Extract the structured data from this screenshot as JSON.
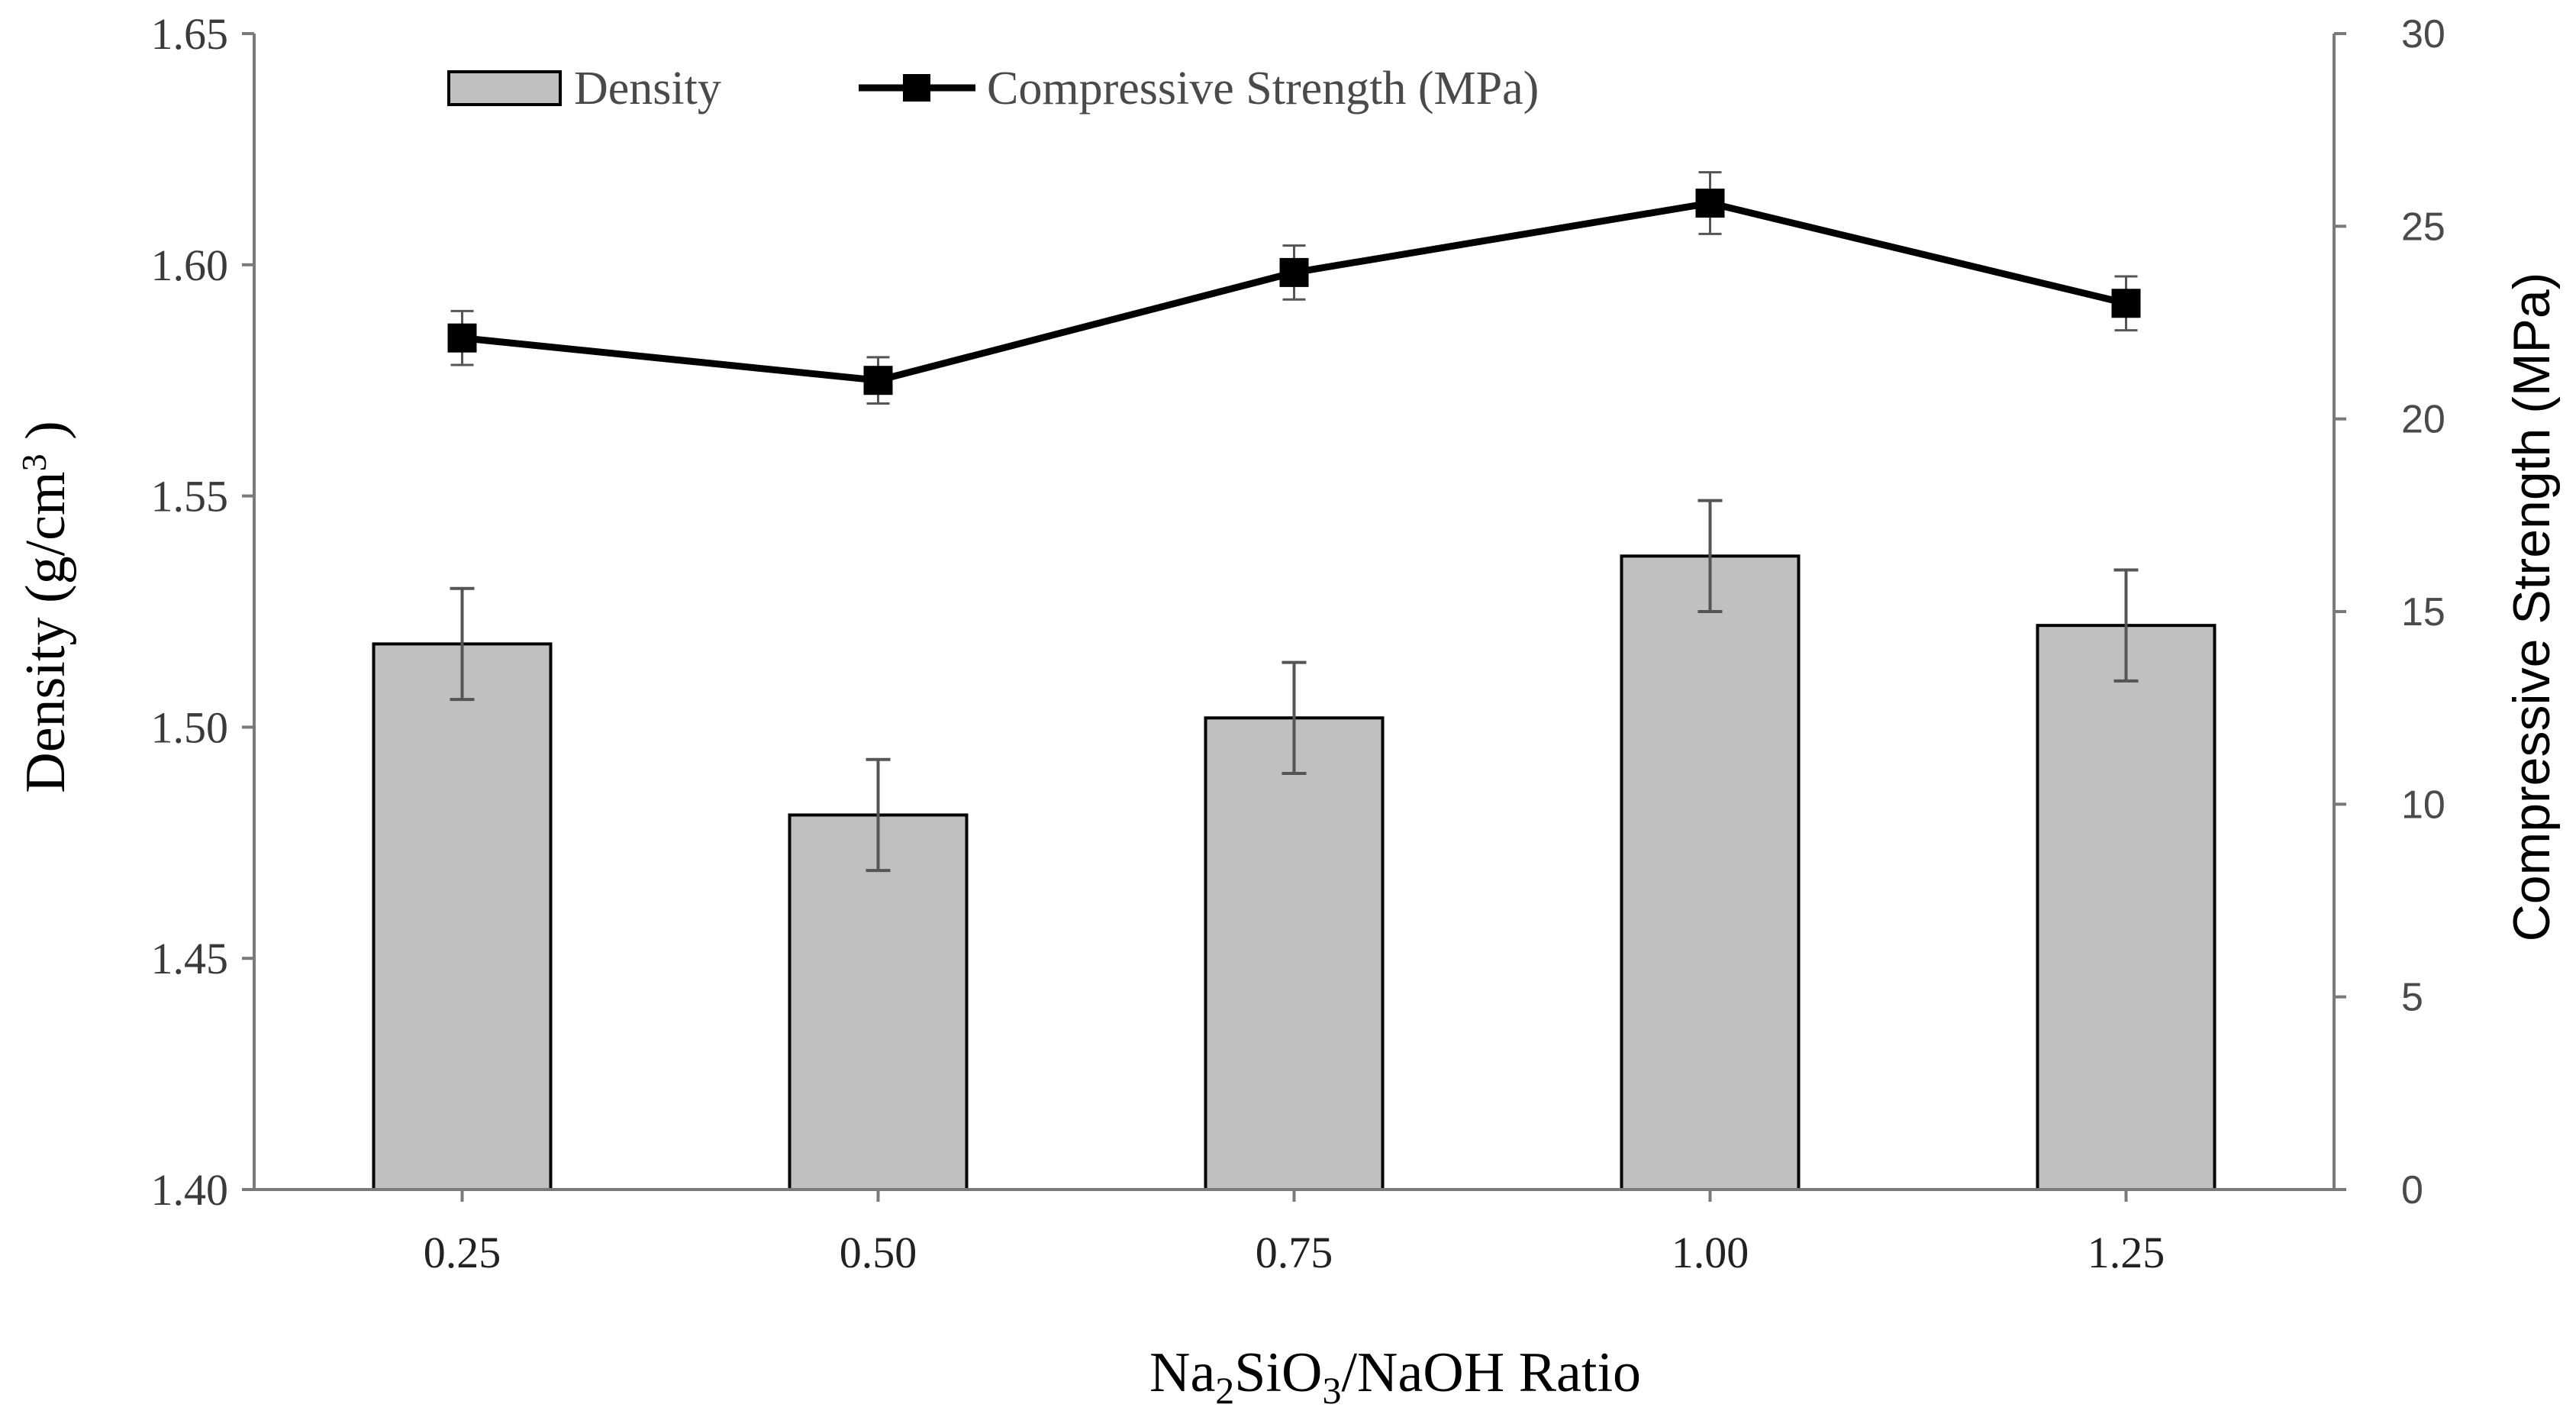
{
  "chart_data": {
    "type": "bar+line",
    "categories": [
      "0.25",
      "0.50",
      "0.75",
      "1.00",
      "1.25"
    ],
    "series": [
      {
        "name": "Density",
        "kind": "bar",
        "axis": "left",
        "values": [
          1.518,
          1.481,
          1.502,
          1.537,
          1.522
        ],
        "error": [
          0.012,
          0.012,
          0.012,
          0.012,
          0.012
        ]
      },
      {
        "name": "Compressive Strength (MPa)",
        "kind": "line",
        "axis": "right",
        "values": [
          22.1,
          21.0,
          23.8,
          25.6,
          23.0
        ],
        "error": [
          0.7,
          0.6,
          0.7,
          0.8,
          0.7
        ]
      }
    ],
    "ylim_left": [
      1.4,
      1.65
    ],
    "yticks_left": [
      "1.40",
      "1.45",
      "1.50",
      "1.55",
      "1.60",
      "1.65"
    ],
    "ylim_right": [
      0,
      30
    ],
    "yticks_right": [
      "0",
      "5",
      "10",
      "15",
      "20",
      "25",
      "30"
    ],
    "ylabel_left": {
      "main": "Density (g/cm",
      "sup": "3",
      "end": " )"
    },
    "ylabel_right": "Compressive Strength (MPa)",
    "xlabel": {
      "p1": "Na",
      "s1": "2",
      "p2": "SiO",
      "s2": "3",
      "p3": "/NaOH Ratio"
    },
    "legend": {
      "position": "top-left",
      "bar_label": "Density",
      "line_label": "Compressive Strength (MPa)"
    },
    "colors": {
      "bar_fill": "#c0c0c0",
      "bar_stroke": "#000000",
      "line": "#000000",
      "error": "#555555",
      "axis": "#7a7a7a"
    }
  }
}
